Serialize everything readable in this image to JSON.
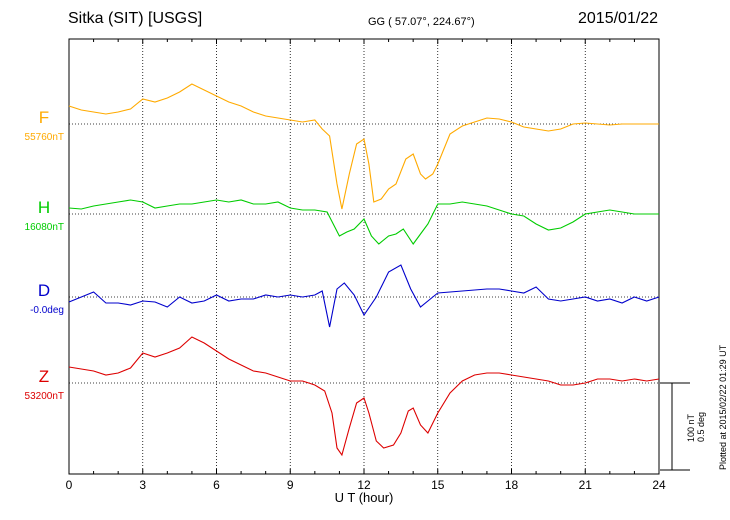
{
  "header": {
    "station": "Sitka (SIT)  [USGS]",
    "coords": "GG ( 57.07°, 224.67°)",
    "date": "2015/01/22"
  },
  "side": {
    "plotted": "Plotted at 2015/02/22 01:29 UT",
    "scale_nt": "100 nT",
    "scale_deg": "0.5 deg"
  },
  "chart_data": {
    "type": "line",
    "xlabel": "U T (hour)",
    "xlim": [
      0,
      24
    ],
    "xticks": [
      0,
      3,
      6,
      9,
      12,
      15,
      18,
      21,
      24
    ],
    "grid": true,
    "series": [
      {
        "name": "F",
        "baseline_label": "55760nT",
        "color": "#ffaa00",
        "points": [
          [
            0,
            -18
          ],
          [
            0.5,
            -14
          ],
          [
            1,
            -12
          ],
          [
            1.5,
            -10
          ],
          [
            2,
            -12
          ],
          [
            2.5,
            -15
          ],
          [
            3,
            -25
          ],
          [
            3.5,
            -22
          ],
          [
            4,
            -26
          ],
          [
            4.5,
            -32
          ],
          [
            5,
            -40
          ],
          [
            5.5,
            -34
          ],
          [
            6,
            -28
          ],
          [
            6.5,
            -22
          ],
          [
            7,
            -18
          ],
          [
            7.5,
            -12
          ],
          [
            8,
            -8
          ],
          [
            8.5,
            -6
          ],
          [
            9,
            -4
          ],
          [
            9.5,
            -2
          ],
          [
            10,
            -4
          ],
          [
            10.3,
            5
          ],
          [
            10.6,
            12
          ],
          [
            10.9,
            60
          ],
          [
            11.1,
            85
          ],
          [
            11.4,
            50
          ],
          [
            11.7,
            20
          ],
          [
            12,
            15
          ],
          [
            12.2,
            40
          ],
          [
            12.4,
            78
          ],
          [
            12.7,
            75
          ],
          [
            13,
            65
          ],
          [
            13.3,
            60
          ],
          [
            13.7,
            35
          ],
          [
            14,
            30
          ],
          [
            14.3,
            50
          ],
          [
            14.5,
            55
          ],
          [
            14.8,
            50
          ],
          [
            15,
            40
          ],
          [
            15.5,
            10
          ],
          [
            16,
            2
          ],
          [
            16.5,
            -2
          ],
          [
            17,
            -6
          ],
          [
            17.5,
            -5
          ],
          [
            18,
            -2
          ],
          [
            18.5,
            3
          ],
          [
            19,
            5
          ],
          [
            19.5,
            7
          ],
          [
            20,
            5
          ],
          [
            20.5,
            0
          ],
          [
            21,
            -1
          ],
          [
            21.5,
            0
          ],
          [
            22,
            1
          ],
          [
            22.5,
            0
          ],
          [
            23,
            0
          ],
          [
            23.5,
            0
          ],
          [
            24,
            0
          ]
        ]
      },
      {
        "name": "H",
        "baseline_label": "16080nT",
        "color": "#00cc00",
        "points": [
          [
            0,
            -6
          ],
          [
            0.5,
            -5
          ],
          [
            1,
            -8
          ],
          [
            1.5,
            -10
          ],
          [
            2,
            -12
          ],
          [
            2.5,
            -14
          ],
          [
            3,
            -12
          ],
          [
            3.5,
            -6
          ],
          [
            4,
            -8
          ],
          [
            4.5,
            -10
          ],
          [
            5,
            -10
          ],
          [
            5.5,
            -12
          ],
          [
            6,
            -14
          ],
          [
            6.5,
            -12
          ],
          [
            7,
            -14
          ],
          [
            7.5,
            -10
          ],
          [
            8,
            -10
          ],
          [
            8.5,
            -12
          ],
          [
            9,
            -6
          ],
          [
            9.5,
            -4
          ],
          [
            10,
            -4
          ],
          [
            10.5,
            -2
          ],
          [
            11,
            22
          ],
          [
            11.3,
            18
          ],
          [
            11.6,
            15
          ],
          [
            12,
            5
          ],
          [
            12.3,
            22
          ],
          [
            12.6,
            30
          ],
          [
            13,
            22
          ],
          [
            13.3,
            20
          ],
          [
            13.6,
            15
          ],
          [
            14,
            30
          ],
          [
            14.3,
            20
          ],
          [
            14.6,
            10
          ],
          [
            15,
            -10
          ],
          [
            15.5,
            -10
          ],
          [
            16,
            -12
          ],
          [
            16.5,
            -10
          ],
          [
            17,
            -8
          ],
          [
            17.5,
            -4
          ],
          [
            18,
            0
          ],
          [
            18.5,
            2
          ],
          [
            19,
            10
          ],
          [
            19.5,
            16
          ],
          [
            20,
            14
          ],
          [
            20.5,
            8
          ],
          [
            21,
            0
          ],
          [
            21.5,
            -2
          ],
          [
            22,
            -4
          ],
          [
            22.5,
            -2
          ],
          [
            23,
            0
          ],
          [
            23.5,
            0
          ],
          [
            24,
            0
          ]
        ]
      },
      {
        "name": "D",
        "baseline_label": "-0.0deg",
        "color": "#0000cc",
        "points": [
          [
            0,
            5
          ],
          [
            0.5,
            0
          ],
          [
            1,
            -5
          ],
          [
            1.5,
            6
          ],
          [
            2,
            6
          ],
          [
            2.5,
            8
          ],
          [
            3,
            4
          ],
          [
            3.5,
            5
          ],
          [
            4,
            10
          ],
          [
            4.5,
            0
          ],
          [
            5,
            6
          ],
          [
            5.5,
            4
          ],
          [
            6,
            -2
          ],
          [
            6.5,
            4
          ],
          [
            7,
            2
          ],
          [
            7.5,
            2
          ],
          [
            8,
            -2
          ],
          [
            8.5,
            0
          ],
          [
            9,
            -2
          ],
          [
            9.5,
            0
          ],
          [
            10,
            -2
          ],
          [
            10.3,
            -6
          ],
          [
            10.6,
            30
          ],
          [
            10.9,
            -8
          ],
          [
            11.2,
            -14
          ],
          [
            11.6,
            -2
          ],
          [
            12,
            18
          ],
          [
            12.5,
            0
          ],
          [
            13,
            -25
          ],
          [
            13.5,
            -32
          ],
          [
            13.9,
            -8
          ],
          [
            14.3,
            10
          ],
          [
            14.8,
            0
          ],
          [
            15,
            -4
          ],
          [
            16,
            -6
          ],
          [
            17,
            -8
          ],
          [
            17.5,
            -8
          ],
          [
            18,
            -6
          ],
          [
            18.5,
            -4
          ],
          [
            19,
            -10
          ],
          [
            19.5,
            2
          ],
          [
            20,
            4
          ],
          [
            20.5,
            2
          ],
          [
            21,
            0
          ],
          [
            21.5,
            4
          ],
          [
            22,
            2
          ],
          [
            22.5,
            6
          ],
          [
            23,
            0
          ],
          [
            23.5,
            4
          ],
          [
            24,
            0
          ]
        ]
      },
      {
        "name": "Z",
        "baseline_label": "53200nT",
        "color": "#dd0000",
        "points": [
          [
            0,
            -16
          ],
          [
            0.5,
            -14
          ],
          [
            1,
            -12
          ],
          [
            1.5,
            -8
          ],
          [
            2,
            -10
          ],
          [
            2.5,
            -15
          ],
          [
            3,
            -30
          ],
          [
            3.5,
            -26
          ],
          [
            4,
            -30
          ],
          [
            4.5,
            -35
          ],
          [
            5,
            -46
          ],
          [
            5.5,
            -40
          ],
          [
            6,
            -32
          ],
          [
            6.5,
            -24
          ],
          [
            7,
            -18
          ],
          [
            7.5,
            -12
          ],
          [
            8,
            -10
          ],
          [
            8.5,
            -6
          ],
          [
            9,
            -2
          ],
          [
            9.5,
            -2
          ],
          [
            10,
            2
          ],
          [
            10.4,
            8
          ],
          [
            10.7,
            30
          ],
          [
            10.9,
            65
          ],
          [
            11.1,
            72
          ],
          [
            11.4,
            45
          ],
          [
            11.7,
            20
          ],
          [
            12,
            15
          ],
          [
            12.2,
            30
          ],
          [
            12.5,
            58
          ],
          [
            12.8,
            65
          ],
          [
            13.2,
            62
          ],
          [
            13.5,
            50
          ],
          [
            13.8,
            28
          ],
          [
            14,
            25
          ],
          [
            14.3,
            42
          ],
          [
            14.6,
            50
          ],
          [
            15,
            30
          ],
          [
            15.5,
            10
          ],
          [
            16,
            -2
          ],
          [
            16.5,
            -8
          ],
          [
            17,
            -10
          ],
          [
            17.5,
            -10
          ],
          [
            18,
            -8
          ],
          [
            18.5,
            -6
          ],
          [
            19,
            -4
          ],
          [
            19.5,
            -2
          ],
          [
            20,
            2
          ],
          [
            20.5,
            2
          ],
          [
            21,
            0
          ],
          [
            21.5,
            -4
          ],
          [
            22,
            -4
          ],
          [
            22.5,
            -2
          ],
          [
            23,
            -4
          ],
          [
            23.5,
            -2
          ],
          [
            24,
            -4
          ]
        ]
      }
    ]
  }
}
